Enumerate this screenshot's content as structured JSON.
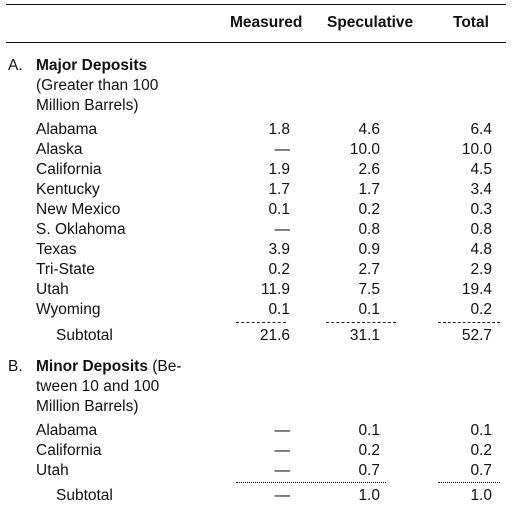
{
  "header": {
    "measured": "Measured",
    "speculative": "Speculative",
    "total": "Total"
  },
  "sections": [
    {
      "letter": "A.",
      "title": "Major Deposits",
      "desc_lines": [
        "(Greater than 100",
        "Million Barrels)"
      ],
      "rows": [
        {
          "name": "Alabama",
          "measured": "1.8",
          "speculative": "4.6",
          "total": "6.4"
        },
        {
          "name": "Alaska",
          "measured": "—",
          "speculative": "10.0",
          "total": "10.0"
        },
        {
          "name": "California",
          "measured": "1.9",
          "speculative": "2.6",
          "total": "4.5"
        },
        {
          "name": "Kentucky",
          "measured": "1.7",
          "speculative": "1.7",
          "total": "3.4"
        },
        {
          "name": "New Mexico",
          "measured": "0.1",
          "speculative": "0.2",
          "total": "0.3"
        },
        {
          "name": "S. Oklahoma",
          "measured": "—",
          "speculative": "0.8",
          "total": "0.8"
        },
        {
          "name": "Texas",
          "measured": "3.9",
          "speculative": "0.9",
          "total": "4.8"
        },
        {
          "name": "Tri-State",
          "measured": "0.2",
          "speculative": "2.7",
          "total": "2.9"
        },
        {
          "name": "Utah",
          "measured": "11.9",
          "speculative": "7.5",
          "total": "19.4"
        },
        {
          "name": "Wyoming",
          "measured": "0.1",
          "speculative": "0.1",
          "total": "0.2"
        }
      ],
      "subtotal": {
        "label": "Subtotal",
        "measured": "21.6",
        "speculative": "31.1",
        "total": "52.7"
      }
    },
    {
      "letter": "B.",
      "title": "Minor Deposits",
      "title_suffix": " (Be-",
      "desc_lines": [
        "tween 10 and 100",
        "Million Barrels)"
      ],
      "rows": [
        {
          "name": "Alabama",
          "measured": "—",
          "speculative": "0.1",
          "total": "0.1"
        },
        {
          "name": "California",
          "measured": "—",
          "speculative": "0.2",
          "total": "0.2"
        },
        {
          "name": "Utah",
          "measured": "—",
          "speculative": "0.7",
          "total": "0.7"
        }
      ],
      "subtotal": {
        "label": "Subtotal",
        "measured": "—",
        "speculative": "1.0",
        "total": "1.0"
      }
    }
  ]
}
